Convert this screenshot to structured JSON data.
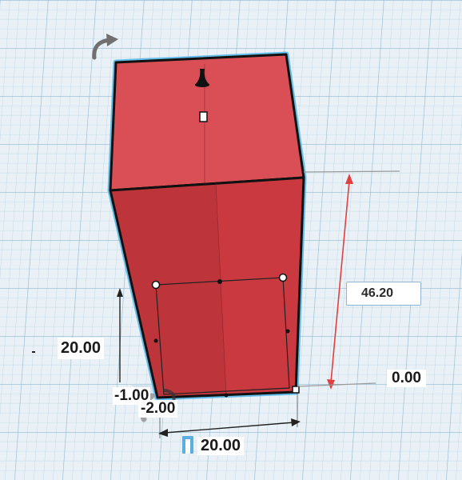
{
  "workplane": {
    "grid_color": "#9fc3da",
    "background": "#e9f1f6"
  },
  "shape": {
    "type": "box",
    "color": "#d2444a",
    "outline_color": "#111111",
    "selection_halo": "#4fb4e8"
  },
  "dimensions": {
    "height_input": {
      "value": "46.20"
    },
    "elevation_label": "0.00",
    "width_label": "20.00",
    "length_label": "20.00",
    "offset_label_a": "-1.00",
    "offset_label_b": "-2.00"
  },
  "colors": {
    "height_arrow": "#e04040",
    "dimension_line": "#222222",
    "rotate_handle": "#707070"
  }
}
